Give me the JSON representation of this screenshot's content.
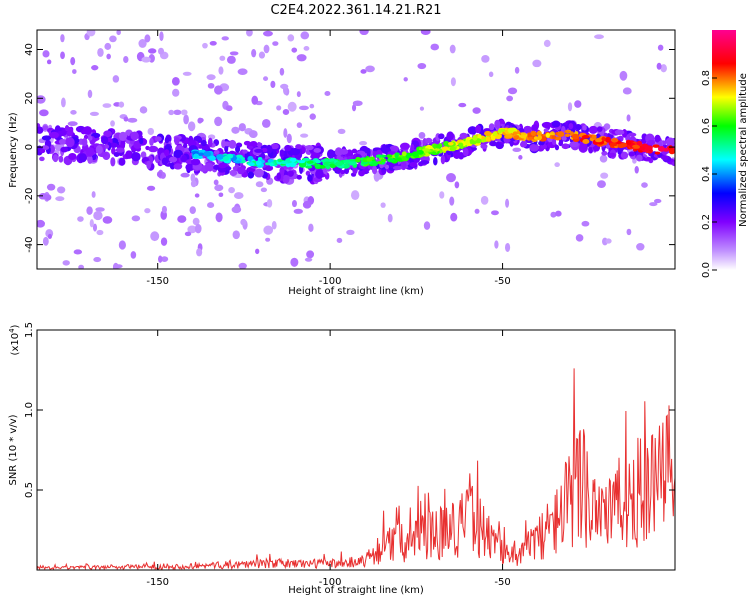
{
  "title": "C2E4.2022.361.14.21.R21",
  "chart_data": [
    {
      "type": "heatmap",
      "xlabel": "Height of straight line (km)",
      "ylabel": "Frequency (Hz)",
      "xlim": [
        -185,
        0
      ],
      "ylim": [
        -50,
        48
      ],
      "x_ticks": [
        -150,
        -100,
        -50
      ],
      "x_tick_labels": [
        "-150",
        "-100",
        "-50"
      ],
      "y_ticks": [
        -40,
        -20,
        0,
        20,
        40
      ],
      "y_tick_labels": [
        "-40",
        "-20",
        "0",
        "20",
        "40"
      ],
      "colorbar": {
        "label": "Normalized spectral amplitude",
        "range": [
          0.0,
          1.0
        ],
        "ticks": [
          0.0,
          0.2,
          0.4,
          0.6,
          0.8
        ],
        "tick_labels": [
          "0.0",
          "0.2",
          "0.4",
          "0.6",
          "0.8"
        ],
        "colormap": [
          "#ffffff",
          "#9d00ff",
          "#0000ff",
          "#00ffff",
          "#00ff00",
          "#ffff00",
          "#ff0000",
          "#ff0090"
        ]
      },
      "ridge": {
        "x": [
          -185,
          -160,
          -140,
          -120,
          -100,
          -90,
          -80,
          -70,
          -60,
          -50,
          -40,
          -30,
          -20,
          -10,
          0
        ],
        "y": [
          2,
          0,
          -3,
          -6,
          -7,
          -6,
          -4,
          -1,
          2,
          6,
          4,
          5,
          2,
          0,
          -2
        ]
      },
      "grid": false
    },
    {
      "type": "line",
      "xlabel": "Height of straight line (km)",
      "ylabel": "SNR (10 * v/v)",
      "y_scale_label": "(x10",
      "y_scale_exponent": "4",
      "y_scale_suffix": ")",
      "xlim": [
        -185,
        0
      ],
      "ylim": [
        0,
        1.5
      ],
      "x_ticks": [
        -150,
        -100,
        -50
      ],
      "x_tick_labels": [
        "-150",
        "-100",
        "-50"
      ],
      "y_ticks": [
        0.5,
        1.0,
        1.5
      ],
      "y_tick_labels": [
        "0.5",
        "1.0",
        "1.5"
      ],
      "series_color": "#e83030",
      "envelope": {
        "x": [
          -185,
          -140,
          -120,
          -100,
          -90,
          -85,
          -75,
          -65,
          -58,
          -52,
          -45,
          -40,
          -35,
          -30,
          -27,
          -24,
          -20,
          -18,
          -15,
          -10,
          -5,
          0
        ],
        "y": [
          0.02,
          0.04,
          0.07,
          0.07,
          0.1,
          0.25,
          0.35,
          0.45,
          0.55,
          0.25,
          0.15,
          0.35,
          0.5,
          0.8,
          1.0,
          0.75,
          0.7,
          0.65,
          0.75,
          0.85,
          0.9,
          1.1
        ]
      },
      "grid": false
    }
  ]
}
